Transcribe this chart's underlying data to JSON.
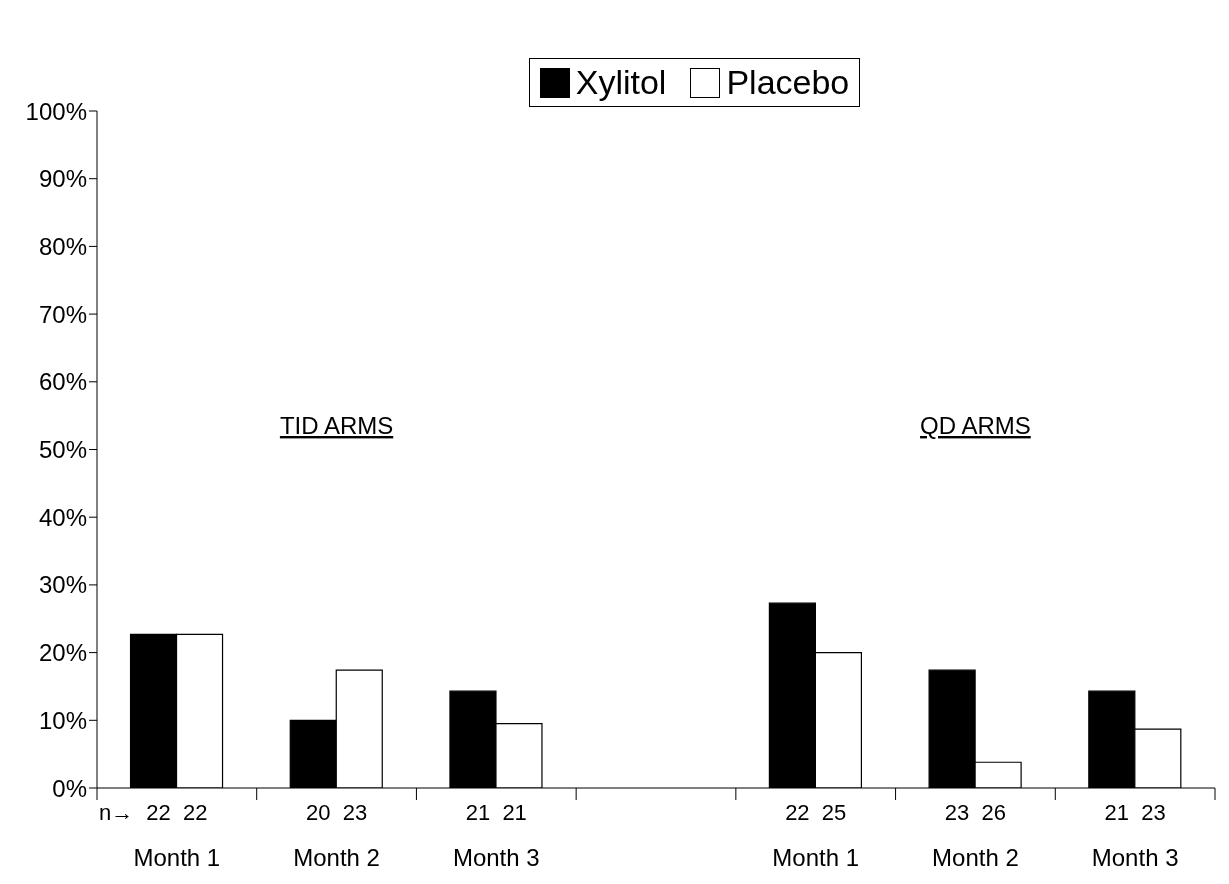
{
  "chart_data": {
    "type": "bar",
    "categories": [
      "Month 1",
      "Month 2",
      "Month 3",
      null,
      "Month 1",
      "Month 2",
      "Month 3"
    ],
    "series": [
      {
        "name": "Xylitol",
        "color": "#000000",
        "values": [
          22.7,
          10.0,
          14.3,
          null,
          27.3,
          17.4,
          14.3
        ]
      },
      {
        "name": "Placebo",
        "color": "#ffffff",
        "values": [
          22.7,
          17.4,
          9.5,
          null,
          20.0,
          3.8,
          8.7
        ]
      }
    ],
    "ylim": [
      0,
      100
    ],
    "yticks": [
      {
        "value": 0,
        "label": "0%"
      },
      {
        "value": 10,
        "label": "10%"
      },
      {
        "value": 20,
        "label": "20%"
      },
      {
        "value": 30,
        "label": "30%"
      },
      {
        "value": 40,
        "label": "40%"
      },
      {
        "value": 50,
        "label": "50%"
      },
      {
        "value": 60,
        "label": "60%"
      },
      {
        "value": 70,
        "label": "70%"
      },
      {
        "value": 80,
        "label": "80%"
      },
      {
        "value": 90,
        "label": "90%"
      },
      {
        "value": 100,
        "label": "100%"
      }
    ],
    "legend": "top",
    "annotations": [
      "TID ARMS",
      "QD ARMS",
      "n→",
      "22  22",
      "20  23",
      "21  21",
      "22  25",
      "23  26",
      "21  23"
    ]
  }
}
